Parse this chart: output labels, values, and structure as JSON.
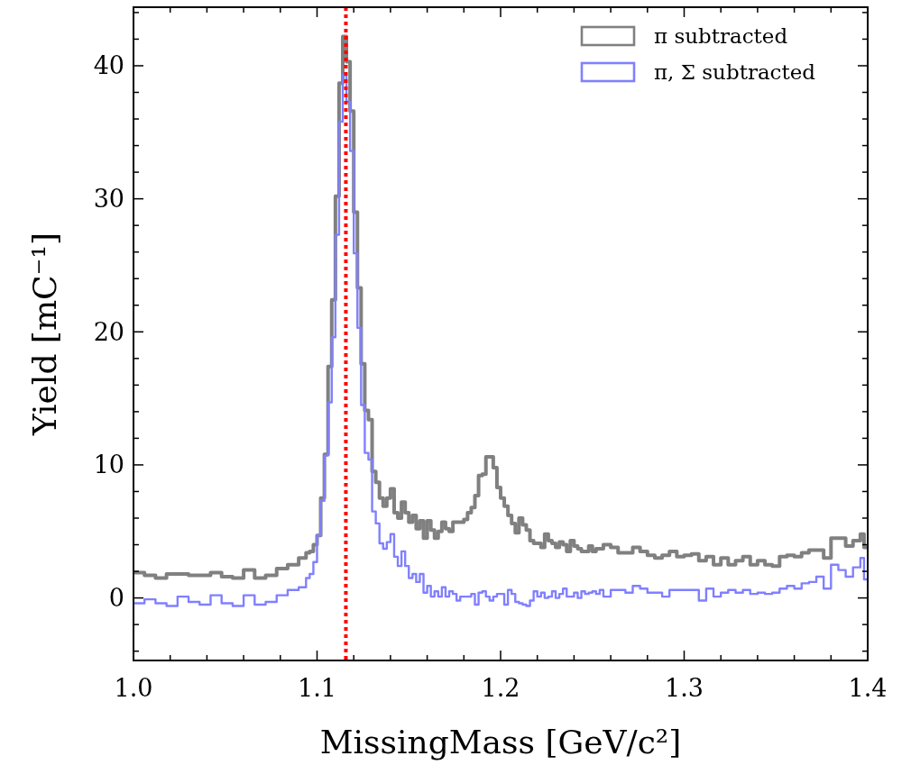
{
  "chart_data": {
    "type": "step",
    "xlabel": "MissingMass [GeV/c²]",
    "ylabel": "Yield [mC⁻¹]",
    "legend": "top right",
    "xlim": [
      1.0,
      1.4
    ],
    "ylim": [
      -4.7,
      44.4
    ],
    "xticks": [
      {
        "value": 1.0,
        "label": "1.0"
      },
      1.1,
      1.2,
      1.3,
      1.4,
      {
        "value": 1.02,
        "label": null
      },
      {
        "value": 1.04,
        "label": null
      },
      {
        "value": 1.06,
        "label": null
      },
      {
        "value": 1.08,
        "label": null
      },
      {
        "value": 1.12,
        "label": null
      },
      {
        "value": 1.14,
        "label": null
      },
      {
        "value": 1.16,
        "label": null
      },
      {
        "value": 1.18,
        "label": null
      },
      {
        "value": 1.22,
        "label": null
      },
      {
        "value": 1.24,
        "label": null
      },
      {
        "value": 1.26,
        "label": null
      },
      {
        "value": 1.28,
        "label": null
      },
      {
        "value": 1.32,
        "label": null
      },
      {
        "value": 1.34,
        "label": null
      },
      {
        "value": 1.36,
        "label": null
      },
      {
        "value": 1.38,
        "label": null
      }
    ],
    "yticks": [
      0,
      10,
      20,
      30,
      40,
      {
        "value": -4,
        "label": null
      },
      {
        "value": -2,
        "label": null
      },
      {
        "value": 2,
        "label": null
      },
      {
        "value": 4,
        "label": null
      },
      {
        "value": 6,
        "label": null
      },
      {
        "value": 8,
        "label": null
      },
      {
        "value": 12,
        "label": null
      },
      {
        "value": 14,
        "label": null
      },
      {
        "value": 16,
        "label": null
      },
      {
        "value": 18,
        "label": null
      },
      {
        "value": 22,
        "label": null
      },
      {
        "value": 24,
        "label": null
      },
      {
        "value": 26,
        "label": null
      },
      {
        "value": 28,
        "label": null
      },
      {
        "value": 32,
        "label": null
      },
      {
        "value": 34,
        "label": null
      },
      {
        "value": 36,
        "label": null
      },
      {
        "value": 38,
        "label": null
      },
      {
        "value": 42,
        "label": null
      },
      {
        "value": 44,
        "label": null
      }
    ],
    "x": [
      1.0,
      1.006,
      1.012,
      1.018,
      1.024,
      1.03,
      1.036,
      1.042,
      1.048,
      1.054,
      1.06,
      1.066,
      1.072,
      1.078,
      1.084,
      1.09,
      1.094,
      1.096,
      1.098,
      1.1,
      1.102,
      1.104,
      1.106,
      1.108,
      1.11,
      1.112,
      1.114,
      1.116,
      1.118,
      1.12,
      1.122,
      1.124,
      1.126,
      1.128,
      1.13,
      1.132,
      1.134,
      1.136,
      1.138,
      1.14,
      1.142,
      1.144,
      1.146,
      1.148,
      1.15,
      1.152,
      1.154,
      1.156,
      1.158,
      1.16,
      1.162,
      1.164,
      1.166,
      1.168,
      1.17,
      1.172,
      1.174,
      1.176,
      1.178,
      1.18,
      1.182,
      1.184,
      1.186,
      1.188,
      1.19,
      1.192,
      1.194,
      1.196,
      1.198,
      1.2,
      1.202,
      1.204,
      1.206,
      1.208,
      1.21,
      1.212,
      1.214,
      1.216,
      1.218,
      1.22,
      1.222,
      1.224,
      1.226,
      1.228,
      1.23,
      1.232,
      1.234,
      1.236,
      1.238,
      1.24,
      1.242,
      1.244,
      1.246,
      1.248,
      1.25,
      1.252,
      1.254,
      1.256,
      1.26,
      1.264,
      1.268,
      1.272,
      1.276,
      1.28,
      1.284,
      1.288,
      1.292,
      1.296,
      1.3,
      1.304,
      1.308,
      1.312,
      1.316,
      1.32,
      1.324,
      1.328,
      1.332,
      1.336,
      1.34,
      1.344,
      1.348,
      1.352,
      1.356,
      1.36,
      1.364,
      1.368,
      1.372,
      1.376,
      1.38,
      1.384,
      1.388,
      1.392,
      1.396,
      1.398
    ],
    "series": [
      {
        "name": "π subtracted",
        "color": "#808080",
        "values": [
          1.9,
          1.7,
          1.5,
          1.8,
          1.8,
          1.7,
          1.7,
          1.9,
          1.6,
          1.5,
          2.1,
          1.5,
          1.7,
          2.2,
          2.5,
          3.0,
          3.4,
          3.5,
          4.0,
          4.7,
          7.5,
          10.8,
          17.4,
          22.4,
          30.2,
          38.7,
          42.2,
          40.3,
          36.6,
          29.0,
          23.3,
          17.6,
          14.1,
          13.4,
          9.5,
          8.7,
          7.5,
          6.9,
          7.5,
          8.2,
          6.4,
          6.0,
          7.2,
          6.4,
          5.7,
          6.2,
          5.2,
          5.8,
          4.5,
          5.8,
          5.1,
          4.5,
          5.0,
          5.7,
          5.2,
          5.0,
          5.7,
          5.7,
          5.7,
          5.9,
          6.4,
          6.8,
          7.7,
          9.2,
          9.3,
          10.6,
          10.6,
          9.8,
          8.3,
          7.5,
          6.9,
          6.2,
          5.6,
          4.9,
          6.0,
          5.5,
          5.1,
          4.3,
          4.1,
          4.1,
          3.8,
          4.8,
          4.3,
          4.1,
          3.8,
          4.2,
          4.0,
          3.5,
          4.3,
          3.9,
          3.7,
          3.5,
          3.5,
          3.9,
          3.5,
          3.7,
          3.7,
          4.0,
          3.8,
          3.4,
          3.4,
          3.8,
          3.5,
          3.2,
          3.0,
          3.2,
          3.5,
          3.1,
          3.2,
          3.3,
          2.8,
          3.1,
          2.5,
          3.0,
          2.5,
          2.8,
          3.1,
          2.5,
          2.8,
          2.5,
          2.4,
          3.1,
          3.2,
          3.1,
          3.4,
          3.6,
          3.6,
          3.0,
          4.5,
          4.5,
          3.9,
          4.3,
          4.8,
          3.8
        ]
      },
      {
        "name": "π, Σ subtracted",
        "color": "#8080ff",
        "values": [
          -0.4,
          -0.1,
          -0.4,
          -0.6,
          0.1,
          -0.3,
          -0.5,
          0.2,
          -0.4,
          -0.6,
          0.2,
          -0.5,
          -0.3,
          0.2,
          0.6,
          0.8,
          1.5,
          1.8,
          2.7,
          4.7,
          7.3,
          10.7,
          14.7,
          19.6,
          27.3,
          35.8,
          39.3,
          37.3,
          33.6,
          25.9,
          20.3,
          14.5,
          10.9,
          10.4,
          6.5,
          5.6,
          4.1,
          3.7,
          4.2,
          4.8,
          3.1,
          2.4,
          3.5,
          2.4,
          1.5,
          1.8,
          1.2,
          1.8,
          0.4,
          0.9,
          0.1,
          0.5,
          0.1,
          0.8,
          0.1,
          0.5,
          0.3,
          -0.2,
          0.1,
          0.1,
          0.1,
          0.3,
          -0.5,
          0.4,
          0.5,
          0.1,
          -0.2,
          0.1,
          0.3,
          0.3,
          -0.5,
          0.6,
          0.3,
          -0.3,
          -0.4,
          -0.5,
          -0.6,
          -0.2,
          0.5,
          0.1,
          0.4,
          0.0,
          0.1,
          0.5,
          0.0,
          0.3,
          0.7,
          0.1,
          0.1,
          0.4,
          0.0,
          0.5,
          0.3,
          0.4,
          0.5,
          0.3,
          0.6,
          0.1,
          0.6,
          0.6,
          0.4,
          0.9,
          0.7,
          0.4,
          0.4,
          0.1,
          0.6,
          0.6,
          0.6,
          0.6,
          -0.2,
          0.7,
          0.1,
          0.4,
          0.6,
          0.4,
          0.6,
          0.3,
          0.4,
          0.3,
          0.4,
          0.7,
          0.9,
          0.7,
          1.1,
          1.2,
          1.6,
          0.7,
          2.5,
          2.1,
          1.6,
          2.3,
          3.0,
          1.4
        ]
      }
    ],
    "ref_lines": [
      {
        "axis": "x",
        "value": 1.1157,
        "color": "#ff0000",
        "line_style": "dotted"
      }
    ]
  }
}
